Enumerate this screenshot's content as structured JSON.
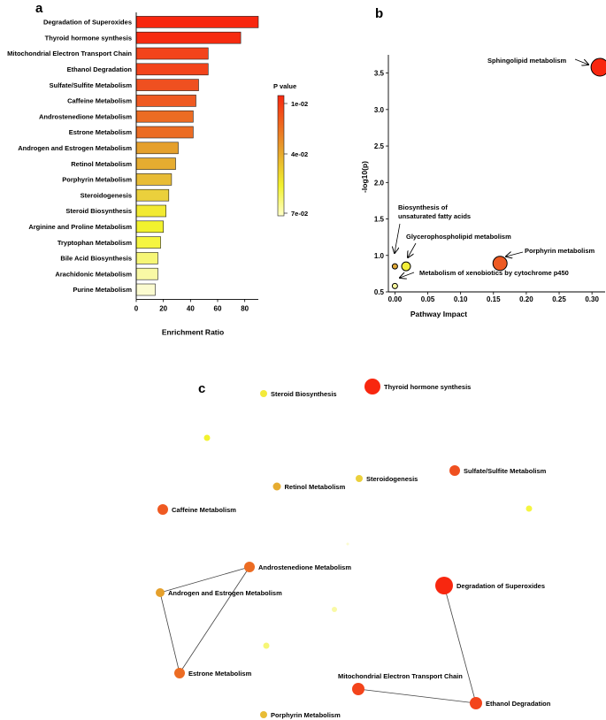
{
  "colors": {
    "low_p": "#f8270f",
    "mid_p": "#e6c633",
    "high_p": "#ffffc8"
  },
  "chart_data": [
    {
      "panel": "a",
      "type": "bar",
      "orientation": "horizontal",
      "xlabel": "Enrichment Ratio",
      "xlim": [
        0,
        90
      ],
      "xticks": [
        "0",
        "20",
        "40",
        "60",
        "80"
      ],
      "categories": [
        "Degradation of Superoxides",
        "Thyroid hormone synthesis",
        "Mitochondrial Electron Transport Chain",
        "Ethanol Degradation",
        "Sulfate/Sulfite Metabolism",
        "Caffeine Metabolism",
        "Androstenedione Metabolism",
        "Estrone Metabolism",
        "Androgen and Estrogen Metabolism",
        "Retinol Metabolism",
        "Porphyrin Metabolism",
        "Steroidogenesis",
        "Steroid Biosynthesis",
        "Arginine and Proline Metabolism",
        "Tryptophan Metabolism",
        "Bile Acid Biosynthesis",
        "Arachidonic Metabolism",
        "Purine Metabolism"
      ],
      "values": [
        90,
        77,
        53,
        53,
        46,
        44,
        42,
        42,
        31,
        29,
        26,
        24,
        22,
        20,
        18,
        16,
        16,
        14
      ],
      "colors": [
        "#f8270f",
        "#f62b10",
        "#f3441b",
        "#f3441b",
        "#ef5020",
        "#ef5a22",
        "#ec6c23",
        "#ec6c23",
        "#e5a02c",
        "#e6ac30",
        "#e8bc36",
        "#ebd03c",
        "#f2ea32",
        "#f2f22e",
        "#f5f540",
        "#f6f676",
        "#f9f9a5",
        "#fbfbd0"
      ],
      "legend": {
        "title": "P value",
        "ticks": [
          "1e-02",
          "4e-02",
          "7e-02"
        ]
      }
    },
    {
      "panel": "b",
      "type": "scatter",
      "xlabel": "Pathway Impact",
      "ylabel": "-log10(p)",
      "xlim": [
        -0.01,
        0.32
      ],
      "ylim": [
        0.5,
        3.75
      ],
      "xticks": [
        "0.00",
        "0.05",
        "0.10",
        "0.15",
        "0.20",
        "0.25",
        "0.30"
      ],
      "yticks": [
        "0.5",
        "1.0",
        "1.5",
        "2.0",
        "2.5",
        "3.0",
        "3.5"
      ],
      "points": [
        {
          "name": "Sphingolipid metabolism",
          "x": 0.312,
          "y": 3.58,
          "size": 10,
          "color": "#f8270f"
        },
        {
          "name": "Porphyrin metabolism",
          "x": 0.16,
          "y": 0.89,
          "size": 8,
          "color": "#ee5a22"
        },
        {
          "name": "Biosynthesis of unsaturated fatty acids",
          "x": 0.0,
          "y": 0.85,
          "size": 3,
          "color": "#e0aa3a"
        },
        {
          "name": "Glycerophospholipid metabolism",
          "x": 0.017,
          "y": 0.85,
          "size": 5,
          "color": "#f3ef3a"
        },
        {
          "name": "Metabolism of xenobiotics by cytochrome p450",
          "x": 0.0,
          "y": 0.58,
          "size": 3,
          "color": "#f8f8a0"
        }
      ]
    },
    {
      "panel": "c",
      "type": "network",
      "nodes": [
        {
          "name": "Steroid Biosynthesis",
          "size": 4,
          "color": "#f3ea3a"
        },
        {
          "name": "Thyroid hormone synthesis",
          "size": 9,
          "color": "#f8270f"
        },
        {
          "name": "Steroidogenesis",
          "size": 4,
          "color": "#ebd03c"
        },
        {
          "name": "Sulfate/Sulfite Metabolism",
          "size": 6,
          "color": "#ef5020"
        },
        {
          "name": "Retinol Metabolism",
          "size": 4.5,
          "color": "#e6ac30"
        },
        {
          "name": "Caffeine Metabolism",
          "size": 6,
          "color": "#ef5a22"
        },
        {
          "name": "Androstenedione Metabolism",
          "size": 6,
          "color": "#ec6c23"
        },
        {
          "name": "Androgen and Estrogen Metabolism",
          "size": 5,
          "color": "#e5a02c"
        },
        {
          "name": "Degradation of Superoxides",
          "size": 10,
          "color": "#f8270f"
        },
        {
          "name": "Estrone Metabolism",
          "size": 6,
          "color": "#ec6c23"
        },
        {
          "name": "Mitochondrial Electron Transport Chain",
          "size": 7,
          "color": "#f3441b"
        },
        {
          "name": "Ethanol Degradation",
          "size": 7,
          "color": "#f3441b"
        },
        {
          "name": "Porphyrin Metabolism",
          "size": 4,
          "color": "#e8bc36"
        },
        {
          "name": "",
          "size": 3.5,
          "color": "#f2f22e"
        },
        {
          "name": "",
          "size": 3.5,
          "color": "#f5f540"
        },
        {
          "name": "",
          "size": 1.5,
          "color": "#fbfbd0"
        },
        {
          "name": "",
          "size": 3,
          "color": "#f9f9a5"
        },
        {
          "name": "",
          "size": 3.5,
          "color": "#f6f676"
        }
      ],
      "edges": [
        [
          "Androstenedione Metabolism",
          "Androgen and Estrogen Metabolism"
        ],
        [
          "Androstenedione Metabolism",
          "Estrone Metabolism"
        ],
        [
          "Androgen and Estrogen Metabolism",
          "Estrone Metabolism"
        ],
        [
          "Degradation of Superoxides",
          "Ethanol Degradation"
        ],
        [
          "Mitochondrial Electron Transport Chain",
          "Ethanol Degradation"
        ]
      ]
    }
  ],
  "panel_b_labels": {
    "sphingo": "Sphingolipid metabolism",
    "porphyrin": "Porphyrin metabolism",
    "biosyn_1": "Biosynthesis of",
    "biosyn_2": "unsaturated fatty acids",
    "glycero": "Glycerophospholipid metabolism",
    "xeno": "Metabolism of xenobiotics by cytochrome p450"
  }
}
